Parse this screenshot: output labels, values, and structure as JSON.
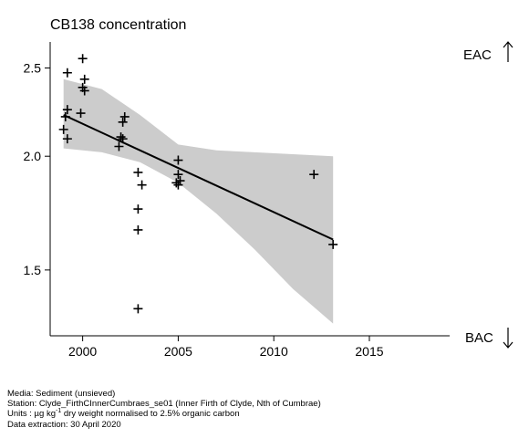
{
  "title": "CB138 concentration",
  "chart_data": {
    "type": "scatter",
    "title": "CB138 concentration",
    "xlim": [
      1998.3,
      2019.2
    ],
    "ylim": [
      1.27,
      2.67
    ],
    "y_scale": "log",
    "x_ticks": [
      2000,
      2005,
      2010,
      2015
    ],
    "x_tick_labels": [
      "2000",
      "2005",
      "2010",
      "2015"
    ],
    "y_ticks": [
      1.5,
      2.0,
      2.5
    ],
    "y_tick_labels": [
      "1.5",
      "2.0",
      "2.5"
    ],
    "grid": false,
    "points": [
      {
        "x": 1999.0,
        "y": 2.14
      },
      {
        "x": 1999.1,
        "y": 2.21
      },
      {
        "x": 1999.2,
        "y": 2.09
      },
      {
        "x": 1999.2,
        "y": 2.25
      },
      {
        "x": 1999.2,
        "y": 2.47
      },
      {
        "x": 1999.9,
        "y": 2.23
      },
      {
        "x": 2000.0,
        "y": 2.38
      },
      {
        "x": 2000.1,
        "y": 2.36
      },
      {
        "x": 2000.0,
        "y": 2.56
      },
      {
        "x": 2000.1,
        "y": 2.43
      },
      {
        "x": 2001.9,
        "y": 2.05
      },
      {
        "x": 2002.0,
        "y": 2.1
      },
      {
        "x": 2002.1,
        "y": 2.09
      },
      {
        "x": 2002.1,
        "y": 2.18
      },
      {
        "x": 2002.2,
        "y": 2.21
      },
      {
        "x": 2002.9,
        "y": 1.36
      },
      {
        "x": 2002.9,
        "y": 1.66
      },
      {
        "x": 2002.9,
        "y": 1.75
      },
      {
        "x": 2002.9,
        "y": 1.92
      },
      {
        "x": 2003.1,
        "y": 1.86
      },
      {
        "x": 2004.9,
        "y": 1.87
      },
      {
        "x": 2005.0,
        "y": 1.86
      },
      {
        "x": 2005.0,
        "y": 1.91
      },
      {
        "x": 2005.0,
        "y": 1.98
      },
      {
        "x": 2005.1,
        "y": 1.88
      },
      {
        "x": 2012.1,
        "y": 1.91
      },
      {
        "x": 2013.1,
        "y": 1.6
      }
    ],
    "trend": {
      "x": [
        1999.0,
        2013.1
      ],
      "y": [
        2.22,
        1.62
      ]
    },
    "confidence_band": {
      "x": [
        1999.0,
        2001.0,
        2003.0,
        2005.0,
        2007.0,
        2009.0,
        2011.0,
        2013.1
      ],
      "upper": [
        2.43,
        2.37,
        2.22,
        2.06,
        2.03,
        2.02,
        2.01,
        2.0
      ],
      "lower": [
        2.04,
        2.02,
        1.97,
        1.87,
        1.73,
        1.58,
        1.43,
        1.31
      ]
    },
    "series_color": "#000000",
    "band_color": "#cccccc",
    "annotations": [
      {
        "label": "EAC",
        "arrow": "up"
      },
      {
        "label": "BAC",
        "arrow": "down"
      }
    ]
  },
  "footer": {
    "media": "Media: Sediment (unsieved)",
    "station": "Station: Clyde_FirthCInnerCumbraes_se01 (Inner Firth of Clyde, Nth of Cumbrae)",
    "units_prefix": "Units : µg kg",
    "units_sup": "-1",
    "units_suffix": " dry weight normalised to 2.5% organic carbon",
    "extraction": "Data extraction: 30 April 2020"
  }
}
